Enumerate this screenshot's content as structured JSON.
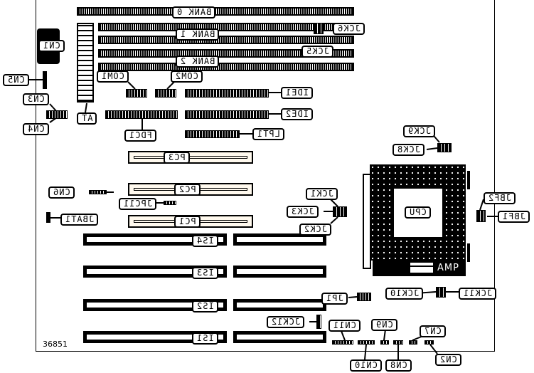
{
  "figure_id": "36851",
  "labels": {
    "bank0": "BANK 0",
    "bank1": "BANK 1",
    "bank2": "BANK 2",
    "cn1": "CN1",
    "cn2": "CN2",
    "cn3": "CN3",
    "cn4": "CN4",
    "cn5": "CN5",
    "cn6": "CN6",
    "cn7": "CN7",
    "cn8": "CN8",
    "cn9": "CN9",
    "cn10": "CN10",
    "cn11": "CN11",
    "at": "AT",
    "com1": "COM1",
    "com2": "COM2",
    "ide1": "IDE1",
    "ide2": "IDE2",
    "fdc1": "FDC1",
    "lpt1": "LPT1",
    "jck1": "JCK1",
    "jck2": "JCK2",
    "jck3": "JCK3",
    "jck5": "JCK5",
    "jck6": "JCK6",
    "jck8": "JCK8",
    "jck9": "JCK9",
    "jck10": "JCK10",
    "jck11": "JCK11",
    "jck12": "JCK12",
    "pc1": "PC1",
    "pc2": "PC2",
    "pc3": "PC3",
    "jpc11": "JPC11",
    "jbat1": "JBAT1",
    "cpu": "CPU",
    "amp": "AMP",
    "jbf1": "JBF1",
    "jbf2": "JBF2",
    "jp1": "JP1",
    "is1": "IS1",
    "is2": "IS2",
    "is3": "IS3",
    "is4": "IS4"
  }
}
